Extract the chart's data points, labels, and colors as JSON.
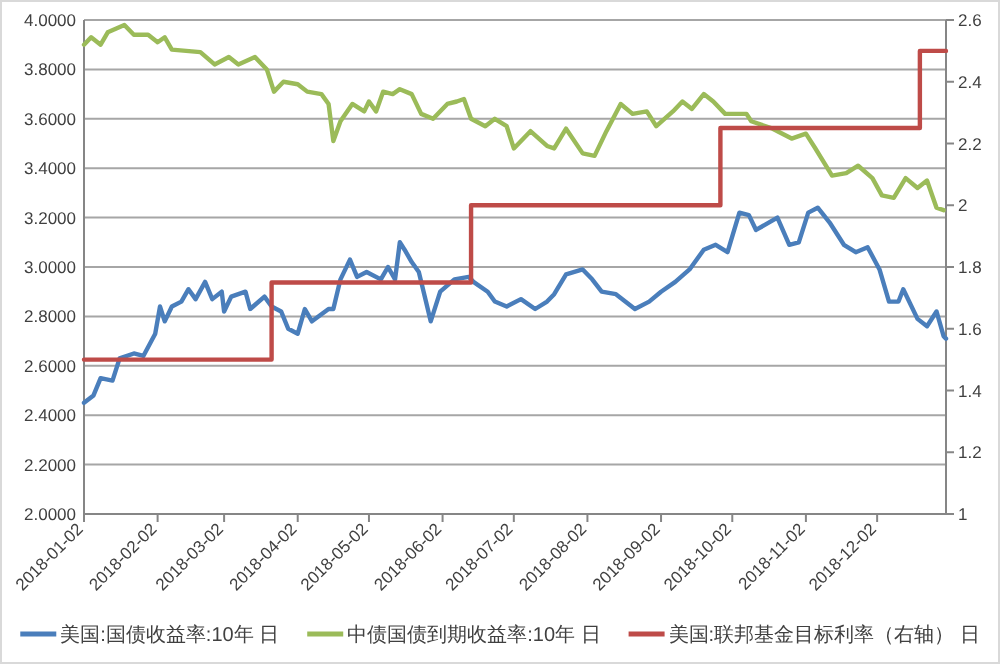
{
  "chart_data": {
    "type": "line",
    "grid": "y",
    "legend": "bottom",
    "xlim": [
      "2018-01-02",
      "2018-12-31"
    ],
    "xticks": [
      "2018-01-02",
      "2018-02-02",
      "2018-03-02",
      "2018-04-02",
      "2018-05-02",
      "2018-06-02",
      "2018-07-02",
      "2018-08-02",
      "2018-09-02",
      "2018-10-02",
      "2018-11-02",
      "2018-12-02"
    ],
    "ylim": [
      2,
      4
    ],
    "yticks": [
      {
        "value": 2,
        "label": "2.0000"
      },
      {
        "value": 2.2,
        "label": "2.2000"
      },
      {
        "value": 2.4,
        "label": "2.4000"
      },
      {
        "value": 2.6,
        "label": "2.6000"
      },
      {
        "value": 2.8,
        "label": "2.8000"
      },
      {
        "value": 3,
        "label": "3.0000"
      },
      {
        "value": 3.2,
        "label": "3.2000"
      },
      {
        "value": 3.4,
        "label": "3.4000"
      },
      {
        "value": 3.6,
        "label": "3.6000"
      },
      {
        "value": 3.8,
        "label": "3.8000"
      },
      {
        "value": 4,
        "label": "4.0000"
      }
    ],
    "y2lim": [
      1,
      2.6
    ],
    "y2ticks": [
      1,
      1.2,
      1.4,
      1.6,
      1.8,
      2,
      2.2,
      2.4,
      2.6
    ],
    "series": [
      {
        "name": "美国:国债收益率:10年 日",
        "color": "#4a7ebb",
        "x": [
          "2018-01-02",
          "2018-01-06",
          "2018-01-09",
          "2018-01-14",
          "2018-01-17",
          "2018-01-23",
          "2018-01-27",
          "2018-02-01",
          "2018-02-03",
          "2018-02-05",
          "2018-02-08",
          "2018-02-12",
          "2018-02-15",
          "2018-02-18",
          "2018-02-22",
          "2018-02-25",
          "2018-03-01",
          "2018-03-02",
          "2018-03-05",
          "2018-03-11",
          "2018-03-13",
          "2018-03-19",
          "2018-03-22",
          "2018-03-26",
          "2018-03-29",
          "2018-04-02",
          "2018-04-05",
          "2018-04-08",
          "2018-04-15",
          "2018-04-17",
          "2018-04-20",
          "2018-04-24",
          "2018-04-27",
          "2018-05-01",
          "2018-05-07",
          "2018-05-10",
          "2018-05-13",
          "2018-05-15",
          "2018-05-17",
          "2018-05-20",
          "2018-05-23",
          "2018-05-26",
          "2018-05-28",
          "2018-06-01",
          "2018-06-07",
          "2018-06-13",
          "2018-06-15",
          "2018-06-21",
          "2018-06-24",
          "2018-06-29",
          "2018-07-05",
          "2018-07-11",
          "2018-07-16",
          "2018-07-19",
          "2018-07-24",
          "2018-07-31",
          "2018-08-04",
          "2018-08-08",
          "2018-08-14",
          "2018-08-22",
          "2018-08-28",
          "2018-09-02",
          "2018-09-08",
          "2018-09-14",
          "2018-09-20",
          "2018-09-25",
          "2018-09-30",
          "2018-10-05",
          "2018-10-09",
          "2018-10-12",
          "2018-10-21",
          "2018-10-26",
          "2018-10-30",
          "2018-11-03",
          "2018-11-07",
          "2018-11-12",
          "2018-11-18",
          "2018-11-23",
          "2018-11-28",
          "2018-12-03",
          "2018-12-07",
          "2018-12-11",
          "2018-12-13",
          "2018-12-19",
          "2018-12-23",
          "2018-12-27",
          "2018-12-30",
          "2018-12-31"
        ],
        "values": [
          2.45,
          2.48,
          2.55,
          2.54,
          2.63,
          2.65,
          2.64,
          2.73,
          2.84,
          2.78,
          2.84,
          2.86,
          2.91,
          2.87,
          2.94,
          2.87,
          2.9,
          2.82,
          2.88,
          2.9,
          2.83,
          2.88,
          2.84,
          2.82,
          2.75,
          2.73,
          2.83,
          2.78,
          2.83,
          2.83,
          2.95,
          3.03,
          2.96,
          2.98,
          2.95,
          3.0,
          2.95,
          3.1,
          3.07,
          3.02,
          2.98,
          2.86,
          2.78,
          2.9,
          2.95,
          2.96,
          2.94,
          2.9,
          2.86,
          2.84,
          2.87,
          2.83,
          2.86,
          2.89,
          2.97,
          2.99,
          2.95,
          2.9,
          2.89,
          2.83,
          2.86,
          2.9,
          2.94,
          2.99,
          3.07,
          3.09,
          3.06,
          3.22,
          3.21,
          3.15,
          3.2,
          3.09,
          3.1,
          3.22,
          3.24,
          3.18,
          3.09,
          3.06,
          3.08,
          2.99,
          2.86,
          2.86,
          2.91,
          2.79,
          2.76,
          2.82,
          2.72,
          2.71
        ]
      },
      {
        "name": "中债国债到期收益率:10年 日",
        "color": "#9bbb59",
        "x": [
          "2018-01-02",
          "2018-01-05",
          "2018-01-09",
          "2018-01-12",
          "2018-01-19",
          "2018-01-23",
          "2018-01-29",
          "2018-02-02",
          "2018-02-05",
          "2018-02-08",
          "2018-02-20",
          "2018-02-26",
          "2018-03-04",
          "2018-03-08",
          "2018-03-15",
          "2018-03-20",
          "2018-03-23",
          "2018-03-27",
          "2018-04-02",
          "2018-04-06",
          "2018-04-12",
          "2018-04-15",
          "2018-04-17",
          "2018-04-20",
          "2018-04-25",
          "2018-04-30",
          "2018-05-02",
          "2018-05-05",
          "2018-05-08",
          "2018-05-12",
          "2018-05-15",
          "2018-05-20",
          "2018-05-24",
          "2018-05-29",
          "2018-06-04",
          "2018-06-08",
          "2018-06-11",
          "2018-06-14",
          "2018-06-20",
          "2018-06-24",
          "2018-06-29",
          "2018-07-02",
          "2018-07-09",
          "2018-07-16",
          "2018-07-19",
          "2018-07-24",
          "2018-07-31",
          "2018-08-05",
          "2018-08-10",
          "2018-08-16",
          "2018-08-21",
          "2018-08-27",
          "2018-08-31",
          "2018-09-07",
          "2018-09-11",
          "2018-09-15",
          "2018-09-20",
          "2018-09-24",
          "2018-09-29",
          "2018-10-08",
          "2018-10-10",
          "2018-10-19",
          "2018-10-27",
          "2018-11-02",
          "2018-11-06",
          "2018-11-13",
          "2018-11-19",
          "2018-11-24",
          "2018-11-30",
          "2018-12-04",
          "2018-12-09",
          "2018-12-14",
          "2018-12-19",
          "2018-12-23",
          "2018-12-27",
          "2018-12-30"
        ],
        "values": [
          3.9,
          3.93,
          3.9,
          3.95,
          3.98,
          3.94,
          3.94,
          3.91,
          3.93,
          3.88,
          3.87,
          3.82,
          3.85,
          3.82,
          3.85,
          3.8,
          3.71,
          3.75,
          3.74,
          3.71,
          3.7,
          3.66,
          3.51,
          3.59,
          3.66,
          3.63,
          3.67,
          3.63,
          3.71,
          3.7,
          3.72,
          3.7,
          3.62,
          3.6,
          3.66,
          3.67,
          3.68,
          3.6,
          3.57,
          3.6,
          3.57,
          3.48,
          3.55,
          3.49,
          3.48,
          3.56,
          3.46,
          3.45,
          3.55,
          3.66,
          3.62,
          3.63,
          3.57,
          3.63,
          3.67,
          3.64,
          3.7,
          3.67,
          3.62,
          3.62,
          3.59,
          3.56,
          3.52,
          3.54,
          3.48,
          3.37,
          3.38,
          3.41,
          3.36,
          3.29,
          3.28,
          3.36,
          3.32,
          3.35,
          3.24,
          3.23
        ]
      },
      {
        "name": "美国:联邦基金目标利率（右轴） 日",
        "color": "#be4b48",
        "type": "step",
        "axis": "y2",
        "x": [
          "2018-01-02",
          "2018-03-22",
          "2018-06-14",
          "2018-09-27",
          "2018-12-20",
          "2018-12-31"
        ],
        "values": [
          1.5,
          1.75,
          2,
          2.25,
          2.5,
          2.5
        ]
      }
    ]
  }
}
